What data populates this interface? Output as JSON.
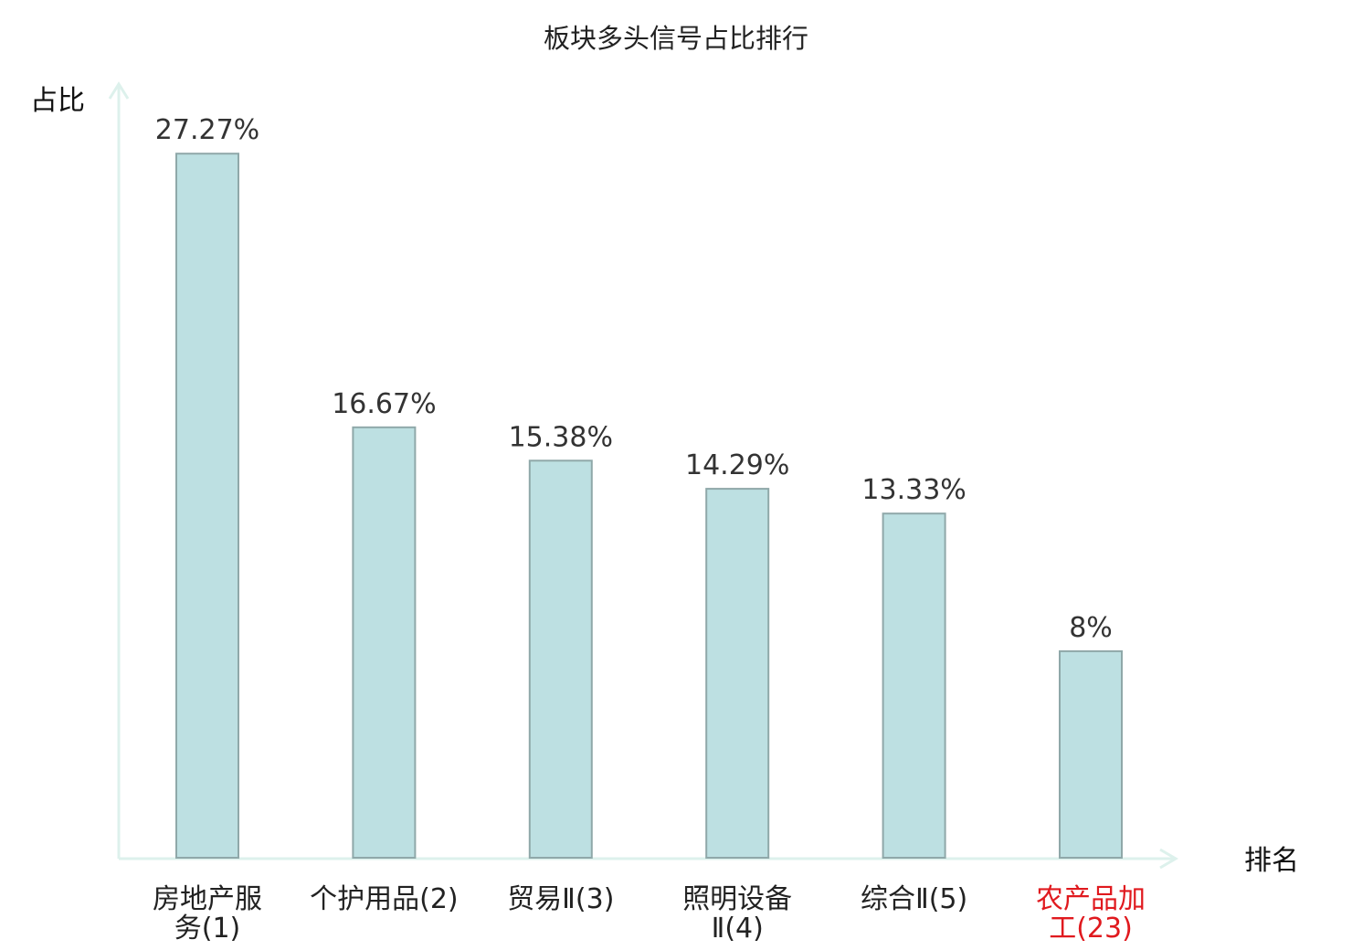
{
  "chart_data": {
    "type": "bar",
    "title": "板块多头信号占比排行",
    "xlabel": "排名",
    "ylabel": "占比",
    "categories": [
      {
        "lines": [
          "房地产服",
          "务(1)"
        ],
        "highlight": false
      },
      {
        "lines": [
          "个护用品(2)"
        ],
        "highlight": false
      },
      {
        "lines": [
          "贸易Ⅱ(3)"
        ],
        "highlight": false
      },
      {
        "lines": [
          "照明设备",
          "Ⅱ(4)"
        ],
        "highlight": false
      },
      {
        "lines": [
          "综合Ⅱ(5)"
        ],
        "highlight": false
      },
      {
        "lines": [
          "农产品加",
          "工(23)"
        ],
        "highlight": true
      }
    ],
    "values": [
      27.27,
      16.67,
      15.38,
      14.29,
      13.33,
      8
    ],
    "value_labels": [
      "27.27%",
      "16.67%",
      "15.38%",
      "14.29%",
      "13.33%",
      "8%"
    ],
    "ylim": [
      0,
      30
    ],
    "grid": false,
    "colors": {
      "bar_fill": "#bde0e2",
      "bar_stroke": "#8fa8a9",
      "axis": "#ddf1ec",
      "label": "#222222",
      "highlight": "#e0191e"
    }
  }
}
